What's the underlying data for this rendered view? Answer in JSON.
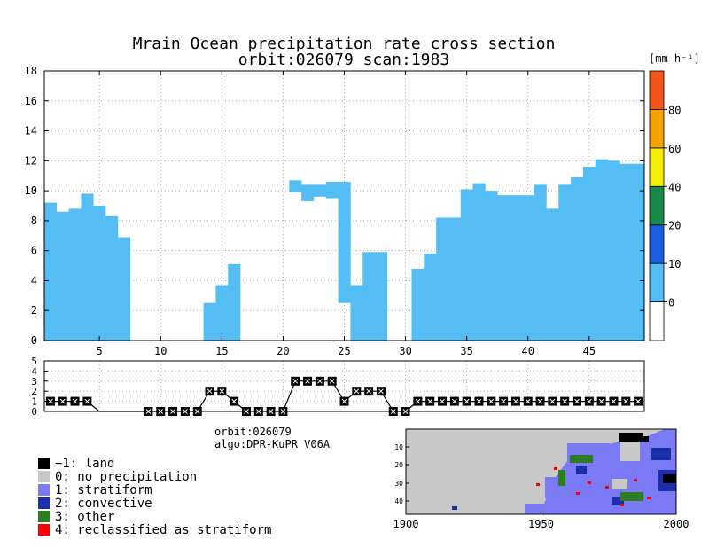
{
  "header": {
    "title_line1": "Mrain Ocean precipitation rate cross section",
    "title_line2": "orbit:026079     scan:1983"
  },
  "colorbar": {
    "unit_label": "[mm h⁻¹]",
    "bins": [
      {
        "lo": -10,
        "hi": 0,
        "color": "#ffffff"
      },
      {
        "lo": 0,
        "hi": 10,
        "color": "#54bdf4"
      },
      {
        "lo": 10,
        "hi": 20,
        "color": "#1a5fe0"
      },
      {
        "lo": 20,
        "hi": 40,
        "color": "#1a8a4a"
      },
      {
        "lo": 40,
        "hi": 60,
        "color": "#f4ee00"
      },
      {
        "lo": 60,
        "hi": 80,
        "color": "#f4a300"
      },
      {
        "lo": 80,
        "hi": 100,
        "color": "#f2541c"
      }
    ],
    "tick_labels": [
      "0",
      "10",
      "20",
      "40",
      "60",
      "80"
    ]
  },
  "chart_data": [
    {
      "type": "bar",
      "name": "precipitation-cross-section",
      "title": "Mrain Ocean precipitation rate cross section",
      "xlim": [
        0.5,
        49.5
      ],
      "ylim": [
        0,
        18
      ],
      "x_ticks": [
        5,
        10,
        15,
        20,
        25,
        30,
        35,
        40,
        45
      ],
      "y_ticks": [
        0,
        2,
        4,
        6,
        8,
        10,
        12,
        14,
        16,
        18
      ],
      "grid": true,
      "rain_color": "#54bdf4",
      "bins": [
        1,
        2,
        3,
        4,
        5,
        6,
        7,
        8,
        9,
        10,
        11,
        12,
        13,
        14,
        15,
        16,
        17,
        18,
        19,
        20,
        21,
        22,
        23,
        24,
        25,
        26,
        27,
        28,
        29,
        30,
        31,
        32,
        33,
        34,
        35,
        36,
        37,
        38,
        39,
        40,
        41,
        42,
        43,
        44,
        45,
        46,
        47,
        48,
        49
      ],
      "bottom": [
        0,
        0,
        0,
        0,
        0,
        0,
        0,
        0,
        0,
        0,
        0,
        0,
        0,
        0,
        0,
        0,
        0,
        0,
        0,
        0,
        0,
        0,
        0,
        0,
        0,
        0,
        0,
        0,
        0,
        0,
        0,
        0,
        0,
        0,
        0,
        0,
        0,
        0,
        0,
        0,
        0,
        0,
        0,
        0,
        0,
        0,
        0,
        0,
        0
      ],
      "top": [
        9.2,
        8.6,
        8.8,
        9.8,
        9.0,
        8.3,
        6.9,
        0,
        0,
        0,
        0,
        0,
        0,
        2.5,
        3.7,
        5.1,
        0,
        0,
        0,
        0,
        10.7,
        10.4,
        10.4,
        10.6,
        10.6,
        3.7,
        5.9,
        5.9,
        0,
        0,
        4.8,
        5.8,
        8.2,
        8.2,
        10.1,
        10.5,
        10.0,
        9.7,
        9.7,
        9.7,
        10.4,
        8.8,
        10.4,
        10.9,
        11.6,
        12.1,
        12.0,
        11.8,
        11.8
      ],
      "bottom_above": [
        0,
        0,
        0,
        0,
        0,
        0,
        0,
        0,
        0,
        0,
        0,
        0,
        0,
        0,
        0,
        0,
        0,
        0,
        0,
        0,
        9.9,
        9.3,
        9.6,
        9.5,
        2.5,
        0,
        0,
        0,
        0,
        0,
        0,
        0,
        0,
        0,
        0,
        0,
        0,
        0,
        0,
        0,
        0,
        0,
        0,
        0,
        0,
        0,
        0,
        0,
        0
      ]
    },
    {
      "type": "line",
      "name": "rain-type-flag",
      "x": [
        1,
        2,
        3,
        4,
        5,
        6,
        7,
        8,
        9,
        10,
        11,
        12,
        13,
        14,
        15,
        16,
        17,
        18,
        19,
        20,
        21,
        22,
        23,
        24,
        25,
        26,
        27,
        28,
        29,
        30,
        31,
        32,
        33,
        34,
        35,
        36,
        37,
        38,
        39,
        40,
        41,
        42,
        43,
        44,
        45,
        46,
        47,
        48,
        49
      ],
      "y": [
        1,
        1,
        1,
        1,
        0,
        0,
        0,
        0,
        0,
        0,
        0,
        0,
        0,
        2,
        2,
        1,
        0,
        0,
        0,
        0,
        3,
        3,
        3,
        3,
        1,
        2,
        2,
        2,
        0,
        0,
        1,
        1,
        1,
        1,
        1,
        1,
        1,
        1,
        1,
        1,
        1,
        1,
        1,
        1,
        1,
        1,
        1,
        1,
        1
      ],
      "markers": [
        1,
        1,
        1,
        1,
        0,
        0,
        0,
        0,
        1,
        1,
        1,
        1,
        1,
        1,
        1,
        1,
        1,
        1,
        1,
        1,
        1,
        1,
        1,
        1,
        1,
        1,
        1,
        1,
        1,
        1,
        1,
        1,
        1,
        1,
        1,
        1,
        1,
        1,
        1,
        1,
        1,
        1,
        1,
        1,
        1,
        1,
        1,
        1,
        1
      ],
      "x_ticks": [],
      "y_ticks": [
        0,
        1,
        2,
        3,
        4,
        5
      ],
      "ylim": [
        0,
        5
      ],
      "grid": true
    }
  ],
  "info": {
    "orbit_label": "orbit:026079",
    "algo_label": "algo:DPR-KuPR V06A"
  },
  "legend": {
    "items": [
      {
        "label": "−1: land",
        "color": "#000000"
      },
      {
        "label": "0: no precipitation",
        "color": "#c8c8c8"
      },
      {
        "label": "1: stratiform",
        "color": "#7a7af5"
      },
      {
        "label": "2: convective",
        "color": "#1a2fa8"
      },
      {
        "label": "3: other",
        "color": "#2e7d23"
      },
      {
        "label": "4: reclassified as stratiform",
        "color": "#ff0000"
      }
    ]
  },
  "minimap": {
    "x_ticks": [
      "1900",
      "1950",
      "2000"
    ],
    "y_ticks": [
      "10",
      "20",
      "30",
      "40"
    ]
  }
}
